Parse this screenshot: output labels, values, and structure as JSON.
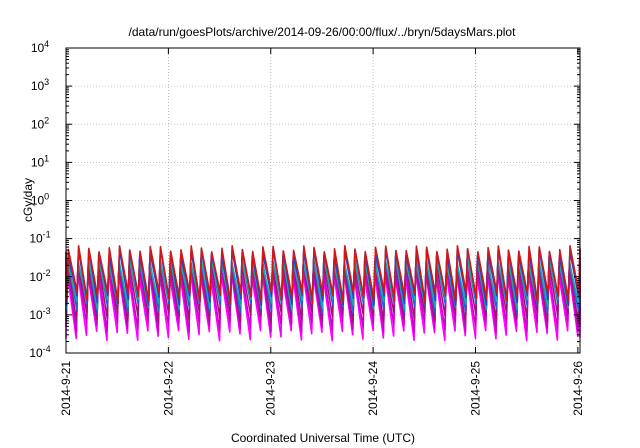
{
  "chart_data": {
    "type": "line",
    "title": "/data/run/goesPlots/archive/2014-09-26/00:00/flux/../bryn/5daysMars.plot",
    "xlabel": "Coordinated Universal Time (UTC)",
    "ylabel": "cGy/day",
    "x_ticks": [
      "2014-9-21",
      "2014-9-22",
      "2014-9-23",
      "2014-9-24",
      "2014-9-25",
      "2014-9-26"
    ],
    "xlim": [
      "2014-09-21T00:00",
      "2014-09-26T00:30"
    ],
    "yscale": "log",
    "ylim": [
      0.0001,
      10000
    ],
    "y_ticks": [
      {
        "base": "10",
        "exp": "-4"
      },
      {
        "base": "10",
        "exp": "-3"
      },
      {
        "base": "10",
        "exp": "-2"
      },
      {
        "base": "10",
        "exp": "-1"
      },
      {
        "base": "10",
        "exp": "0"
      },
      {
        "base": "10",
        "exp": "1"
      },
      {
        "base": "10",
        "exp": "2"
      },
      {
        "base": "10",
        "exp": "3"
      },
      {
        "base": "10",
        "exp": "4"
      }
    ],
    "grid": true,
    "pattern": {
      "description_values": "sawtooth with roughly 10 cycles per day",
      "cycles_per_day": 10
    },
    "series": [
      {
        "color": "#ff00ff",
        "peak": 0.012,
        "trough": 0.0003
      },
      {
        "color": "#cc00cc",
        "peak": 0.016,
        "trough": 0.0005
      },
      {
        "color": "#a0147a",
        "peak": 0.022,
        "trough": 0.0009
      },
      {
        "color": "#1e5fd8",
        "peak": 0.03,
        "trough": 0.0016
      },
      {
        "color": "#18a8a8",
        "peak": 0.025,
        "trough": 0.002
      },
      {
        "color": "#2e3fcf",
        "peak": 0.045,
        "trough": 0.0025
      },
      {
        "color": "#d01818",
        "peak": 0.055,
        "trough": 0.003
      }
    ]
  }
}
